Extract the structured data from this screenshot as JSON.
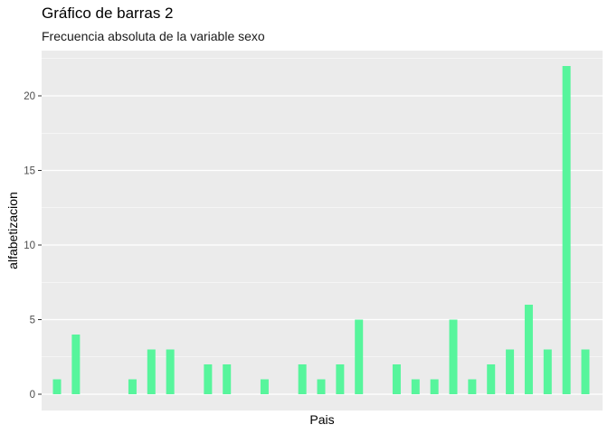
{
  "chart_data": {
    "type": "bar",
    "title": "Gráfico de barras 2",
    "subtitle": "Frecuencia absoluta de la variable sexo",
    "xlabel": "Pais",
    "ylabel": "alfabetizacion",
    "values": [
      1,
      4,
      0,
      0,
      1,
      3,
      3,
      0,
      2,
      2,
      0,
      1,
      0,
      2,
      1,
      2,
      5,
      0,
      2,
      1,
      1,
      5,
      1,
      2,
      3,
      6,
      3,
      22,
      3
    ],
    "ylim": [
      0,
      23.1
    ],
    "yticks": [
      0,
      5,
      10,
      15,
      20
    ],
    "bar_color": "#57f59c",
    "panel_background": "#ebebeb",
    "grid_color": "#ffffff",
    "grid": true
  }
}
